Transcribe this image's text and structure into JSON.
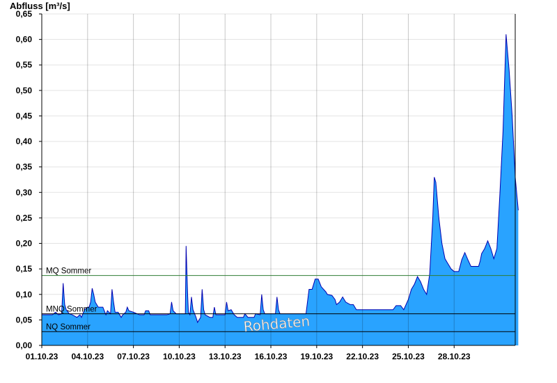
{
  "chart_data": {
    "type": "area",
    "ylabel": "Abfluss [m³/s]",
    "ylim": [
      0,
      0.65
    ],
    "yticks": [
      "0,00",
      "0,05",
      "0,10",
      "0,15",
      "0,20",
      "0,25",
      "0,30",
      "0,35",
      "0,40",
      "0,45",
      "0,50",
      "0,55",
      "0,60",
      "0,65"
    ],
    "xlim_days": [
      0,
      31
    ],
    "xticks": [
      "01.10.23",
      "04.10.23",
      "07.10.23",
      "10.10.23",
      "13.10.23",
      "16.10.23",
      "19.10.23",
      "22.10.23",
      "25.10.23",
      "28.10.23"
    ],
    "grid": true,
    "watermark": "Rohdaten",
    "reference_lines": [
      {
        "name": "MQ Sommer",
        "value": 0.137,
        "color": "#2e7d32"
      },
      {
        "name": "MNQ Sommer",
        "value": 0.062,
        "color": "#000000"
      },
      {
        "name": "NQ Sommer",
        "value": 0.027,
        "color": "#000000"
      }
    ],
    "series": [
      {
        "fill": "#29a3ff",
        "line": "#0000b0",
        "points": [
          [
            0.0,
            0.06
          ],
          [
            0.7,
            0.06
          ],
          [
            0.9,
            0.065
          ],
          [
            1.1,
            0.06
          ],
          [
            1.3,
            0.062
          ],
          [
            1.4,
            0.122
          ],
          [
            1.5,
            0.08
          ],
          [
            1.6,
            0.07
          ],
          [
            1.8,
            0.062
          ],
          [
            2.0,
            0.06
          ],
          [
            2.3,
            0.055
          ],
          [
            2.5,
            0.06
          ],
          [
            2.6,
            0.055
          ],
          [
            2.8,
            0.07
          ],
          [
            3.0,
            0.075
          ],
          [
            3.1,
            0.075
          ],
          [
            3.2,
            0.085
          ],
          [
            3.3,
            0.112
          ],
          [
            3.4,
            0.1
          ],
          [
            3.5,
            0.085
          ],
          [
            3.7,
            0.075
          ],
          [
            4.0,
            0.075
          ],
          [
            4.2,
            0.06
          ],
          [
            4.3,
            0.068
          ],
          [
            4.5,
            0.062
          ],
          [
            4.6,
            0.11
          ],
          [
            4.7,
            0.085
          ],
          [
            4.8,
            0.065
          ],
          [
            5.0,
            0.065
          ],
          [
            5.2,
            0.055
          ],
          [
            5.3,
            0.06
          ],
          [
            5.5,
            0.065
          ],
          [
            5.6,
            0.075
          ],
          [
            5.7,
            0.068
          ],
          [
            6.0,
            0.065
          ],
          [
            6.4,
            0.06
          ],
          [
            6.7,
            0.06
          ],
          [
            6.8,
            0.068
          ],
          [
            7.0,
            0.068
          ],
          [
            7.1,
            0.06
          ],
          [
            8.2,
            0.06
          ],
          [
            8.4,
            0.062
          ],
          [
            8.5,
            0.085
          ],
          [
            8.6,
            0.068
          ],
          [
            8.8,
            0.062
          ],
          [
            9.4,
            0.062
          ],
          [
            9.45,
            0.195
          ],
          [
            9.55,
            0.1
          ],
          [
            9.6,
            0.065
          ],
          [
            9.7,
            0.06
          ],
          [
            9.8,
            0.095
          ],
          [
            9.9,
            0.07
          ],
          [
            10.1,
            0.055
          ],
          [
            10.2,
            0.045
          ],
          [
            10.3,
            0.05
          ],
          [
            10.4,
            0.055
          ],
          [
            10.5,
            0.11
          ],
          [
            10.6,
            0.07
          ],
          [
            10.7,
            0.06
          ],
          [
            11.0,
            0.055
          ],
          [
            11.2,
            0.055
          ],
          [
            11.3,
            0.075
          ],
          [
            11.4,
            0.06
          ],
          [
            11.7,
            0.06
          ],
          [
            11.9,
            0.06
          ],
          [
            12.0,
            0.06
          ],
          [
            12.1,
            0.085
          ],
          [
            12.2,
            0.068
          ],
          [
            12.4,
            0.07
          ],
          [
            12.6,
            0.06
          ],
          [
            12.8,
            0.055
          ],
          [
            13.2,
            0.055
          ],
          [
            13.3,
            0.062
          ],
          [
            13.5,
            0.055
          ],
          [
            13.7,
            0.055
          ],
          [
            13.9,
            0.055
          ],
          [
            14.0,
            0.062
          ],
          [
            14.3,
            0.06
          ],
          [
            14.4,
            0.1
          ],
          [
            14.5,
            0.07
          ],
          [
            14.6,
            0.062
          ],
          [
            15.3,
            0.062
          ],
          [
            15.4,
            0.095
          ],
          [
            15.5,
            0.07
          ],
          [
            15.6,
            0.062
          ],
          [
            17.3,
            0.062
          ],
          [
            17.5,
            0.11
          ],
          [
            17.7,
            0.11
          ],
          [
            17.9,
            0.13
          ],
          [
            18.1,
            0.13
          ],
          [
            18.3,
            0.115
          ],
          [
            18.6,
            0.105
          ],
          [
            18.7,
            0.1
          ],
          [
            19.0,
            0.098
          ],
          [
            19.2,
            0.09
          ],
          [
            19.3,
            0.08
          ],
          [
            19.5,
            0.085
          ],
          [
            19.7,
            0.095
          ],
          [
            19.9,
            0.085
          ],
          [
            20.2,
            0.08
          ],
          [
            20.4,
            0.08
          ],
          [
            20.6,
            0.07
          ],
          [
            23.0,
            0.07
          ],
          [
            23.2,
            0.078
          ],
          [
            23.5,
            0.078
          ],
          [
            23.7,
            0.07
          ],
          [
            24.0,
            0.09
          ],
          [
            24.2,
            0.11
          ],
          [
            24.4,
            0.12
          ],
          [
            24.6,
            0.135
          ],
          [
            24.8,
            0.125
          ],
          [
            25.0,
            0.11
          ],
          [
            25.2,
            0.1
          ],
          [
            25.4,
            0.14
          ],
          [
            25.6,
            0.25
          ],
          [
            25.7,
            0.33
          ],
          [
            25.8,
            0.32
          ],
          [
            26.0,
            0.25
          ],
          [
            26.2,
            0.2
          ],
          [
            26.4,
            0.17
          ],
          [
            26.6,
            0.16
          ],
          [
            26.8,
            0.15
          ],
          [
            27.0,
            0.145
          ],
          [
            27.3,
            0.145
          ],
          [
            27.5,
            0.168
          ],
          [
            27.7,
            0.182
          ],
          [
            27.9,
            0.168
          ],
          [
            28.1,
            0.155
          ],
          [
            28.6,
            0.155
          ],
          [
            28.7,
            0.165
          ],
          [
            28.8,
            0.18
          ],
          [
            29.0,
            0.19
          ],
          [
            29.2,
            0.205
          ],
          [
            29.4,
            0.19
          ],
          [
            29.6,
            0.17
          ],
          [
            29.8,
            0.19
          ],
          [
            30.0,
            0.3
          ],
          [
            30.2,
            0.42
          ],
          [
            30.4,
            0.61
          ],
          [
            30.6,
            0.54
          ],
          [
            30.8,
            0.45
          ],
          [
            31.0,
            0.33
          ],
          [
            31.2,
            0.265
          ]
        ]
      }
    ]
  }
}
